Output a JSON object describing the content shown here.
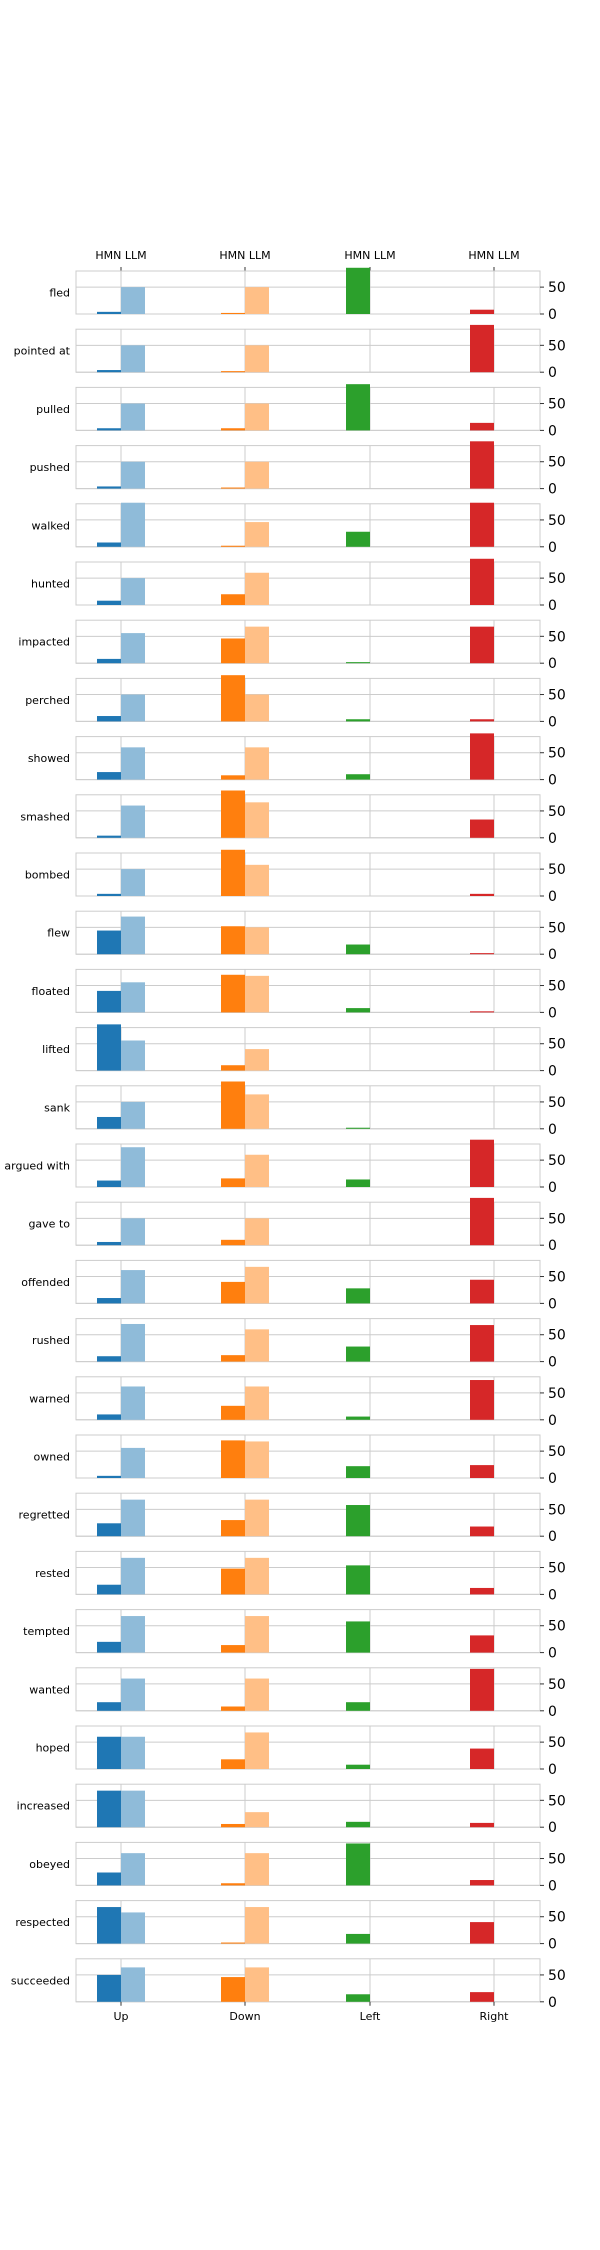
{
  "chart_data": {
    "type": "bar",
    "layout": "small-multiples",
    "categories": [
      "Up",
      "Down",
      "Left",
      "Right"
    ],
    "top_tick_label": "HMN LLM",
    "series_names": [
      "HMN",
      "LLM"
    ],
    "ylim": [
      0,
      80
    ],
    "yticks": [
      0,
      50
    ],
    "colors": {
      "Up": {
        "HMN": "#1f77b4",
        "LLM": "#8fbbd9"
      },
      "Down": {
        "HMN": "#ff7f0e",
        "LLM": "#ffbf86"
      },
      "Left": {
        "HMN": "#2ca02c",
        "LLM": "#95cf95"
      },
      "Right": {
        "HMN": "#d62728",
        "LLM": "#ea9293"
      }
    },
    "panels": [
      {
        "verb": "fled",
        "HMN": [
          4,
          2,
          86,
          8
        ],
        "LLM": [
          50,
          50,
          0,
          0
        ]
      },
      {
        "verb": "pointed at",
        "HMN": [
          4,
          2,
          0,
          88
        ],
        "LLM": [
          50,
          50,
          0,
          0
        ]
      },
      {
        "verb": "pulled",
        "HMN": [
          4,
          4,
          86,
          14
        ],
        "LLM": [
          50,
          50,
          0,
          0
        ]
      },
      {
        "verb": "pushed",
        "HMN": [
          4,
          2,
          0,
          88
        ],
        "LLM": [
          50,
          50,
          0,
          0
        ]
      },
      {
        "verb": "walked",
        "HMN": [
          8,
          2,
          28,
          82
        ],
        "LLM": [
          82,
          46,
          0,
          0
        ]
      },
      {
        "verb": "hunted",
        "HMN": [
          8,
          20,
          0,
          86
        ],
        "LLM": [
          50,
          60,
          0,
          0
        ]
      },
      {
        "verb": "impacted",
        "HMN": [
          8,
          46,
          2,
          68
        ],
        "LLM": [
          56,
          68,
          0,
          0
        ]
      },
      {
        "verb": "perched",
        "HMN": [
          10,
          86,
          4,
          4
        ],
        "LLM": [
          50,
          50,
          0,
          0
        ]
      },
      {
        "verb": "showed",
        "HMN": [
          14,
          8,
          10,
          86
        ],
        "LLM": [
          60,
          60,
          0,
          0
        ]
      },
      {
        "verb": "smashed",
        "HMN": [
          4,
          88,
          0,
          34
        ],
        "LLM": [
          60,
          66,
          0,
          0
        ]
      },
      {
        "verb": "bombed",
        "HMN": [
          4,
          86,
          0,
          4
        ],
        "LLM": [
          50,
          58,
          0,
          0
        ]
      },
      {
        "verb": "flew",
        "HMN": [
          44,
          52,
          18,
          2
        ],
        "LLM": [
          70,
          50,
          0,
          0
        ]
      },
      {
        "verb": "floated",
        "HMN": [
          40,
          70,
          8,
          2
        ],
        "LLM": [
          56,
          68,
          0,
          0
        ]
      },
      {
        "verb": "lifted",
        "HMN": [
          86,
          10,
          0,
          0
        ],
        "LLM": [
          56,
          40,
          0,
          0
        ]
      },
      {
        "verb": "sank",
        "HMN": [
          22,
          88,
          2,
          0
        ],
        "LLM": [
          50,
          64,
          0,
          0
        ]
      },
      {
        "verb": "argued with",
        "HMN": [
          12,
          16,
          14,
          88
        ],
        "LLM": [
          74,
          60,
          0,
          0
        ]
      },
      {
        "verb": "gave to",
        "HMN": [
          6,
          10,
          0,
          88
        ],
        "LLM": [
          50,
          50,
          0,
          0
        ]
      },
      {
        "verb": "offended",
        "HMN": [
          10,
          40,
          28,
          44
        ],
        "LLM": [
          62,
          68,
          0,
          0
        ]
      },
      {
        "verb": "rushed",
        "HMN": [
          10,
          12,
          28,
          68
        ],
        "LLM": [
          70,
          60,
          0,
          0
        ]
      },
      {
        "verb": "warned",
        "HMN": [
          10,
          26,
          6,
          74
        ],
        "LLM": [
          62,
          62,
          0,
          0
        ]
      },
      {
        "verb": "owned",
        "HMN": [
          4,
          70,
          22,
          24
        ],
        "LLM": [
          56,
          68,
          0,
          0
        ]
      },
      {
        "verb": "regretted",
        "HMN": [
          24,
          30,
          58,
          18
        ],
        "LLM": [
          68,
          68,
          0,
          0
        ]
      },
      {
        "verb": "rested",
        "HMN": [
          18,
          48,
          54,
          12
        ],
        "LLM": [
          68,
          68,
          0,
          0
        ]
      },
      {
        "verb": "tempted",
        "HMN": [
          20,
          14,
          58,
          32
        ],
        "LLM": [
          68,
          68,
          0,
          0
        ]
      },
      {
        "verb": "wanted",
        "HMN": [
          16,
          8,
          16,
          78
        ],
        "LLM": [
          60,
          60,
          0,
          0
        ]
      },
      {
        "verb": "hoped",
        "HMN": [
          60,
          18,
          8,
          38
        ],
        "LLM": [
          60,
          68,
          0,
          0
        ]
      },
      {
        "verb": "increased",
        "HMN": [
          68,
          6,
          10,
          8
        ],
        "LLM": [
          68,
          28,
          0,
          0
        ]
      },
      {
        "verb": "obeyed",
        "HMN": [
          24,
          4,
          78,
          10
        ],
        "LLM": [
          60,
          60,
          0,
          0
        ]
      },
      {
        "verb": "respected",
        "HMN": [
          68,
          2,
          18,
          40
        ],
        "LLM": [
          58,
          68,
          0,
          0
        ]
      },
      {
        "verb": "succeeded",
        "HMN": [
          50,
          46,
          14,
          18
        ],
        "LLM": [
          64,
          64,
          0,
          0
        ]
      }
    ]
  }
}
